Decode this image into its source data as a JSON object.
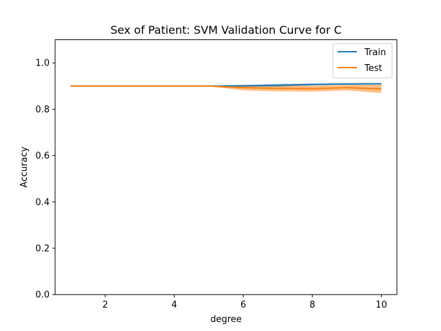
{
  "chart_data": {
    "type": "line",
    "title": "Sex of Patient: SVM Validation Curve for C",
    "xlabel": "degree",
    "ylabel": "Accuracy",
    "xlim": [
      0.55,
      10.45
    ],
    "ylim": [
      0.0,
      1.1
    ],
    "xticks": [
      2,
      4,
      6,
      8,
      10
    ],
    "yticks": [
      0.0,
      0.2,
      0.4,
      0.6,
      0.8,
      1.0
    ],
    "x": [
      1,
      2,
      3,
      4,
      5,
      6,
      7,
      8,
      9,
      10
    ],
    "grid": false,
    "legend_position": "top-right",
    "series": [
      {
        "name": "Train",
        "color": "#1f77b4",
        "values": [
          0.9,
          0.9,
          0.9,
          0.9,
          0.9,
          0.901,
          0.903,
          0.907,
          0.909,
          0.91
        ],
        "band_lower": [
          0.899,
          0.899,
          0.899,
          0.899,
          0.899,
          0.897,
          0.897,
          0.903,
          0.906,
          0.907
        ],
        "band_upper": [
          0.901,
          0.901,
          0.901,
          0.901,
          0.901,
          0.905,
          0.909,
          0.911,
          0.912,
          0.913
        ]
      },
      {
        "name": "Test",
        "color": "#ff7f0e",
        "values": [
          0.9,
          0.9,
          0.9,
          0.9,
          0.9,
          0.893,
          0.89,
          0.889,
          0.893,
          0.888
        ],
        "band_lower": [
          0.899,
          0.899,
          0.899,
          0.899,
          0.899,
          0.881,
          0.877,
          0.876,
          0.881,
          0.87
        ],
        "band_upper": [
          0.901,
          0.901,
          0.901,
          0.901,
          0.901,
          0.905,
          0.903,
          0.902,
          0.905,
          0.906
        ]
      }
    ]
  }
}
